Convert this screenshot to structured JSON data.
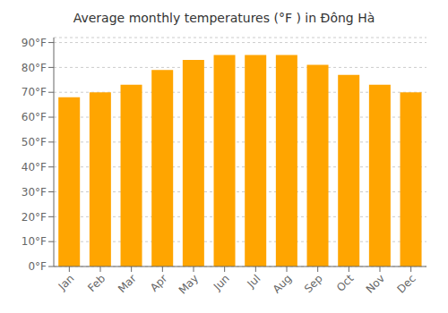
{
  "chart_data": {
    "type": "bar",
    "title": "Average monthly temperatures (°F ) in Đông Hà",
    "categories": [
      "Jan",
      "Feb",
      "Mar",
      "Apr",
      "May",
      "Jun",
      "Jul",
      "Aug",
      "Sep",
      "Oct",
      "Nov",
      "Dec"
    ],
    "values": [
      68,
      70,
      73,
      79,
      83,
      85,
      85,
      85,
      81,
      77,
      73,
      70
    ],
    "color": "#FFA500",
    "ylim": [
      0,
      92
    ],
    "yticks": [
      {
        "value": 0,
        "label": "0°F"
      },
      {
        "value": 10,
        "label": "10°F"
      },
      {
        "value": 20,
        "label": "20°F"
      },
      {
        "value": 30,
        "label": "30°F"
      },
      {
        "value": 40,
        "label": "40°F"
      },
      {
        "value": 50,
        "label": "50°F"
      },
      {
        "value": 60,
        "label": "60°F"
      },
      {
        "value": 70,
        "label": "70°F"
      },
      {
        "value": 80,
        "label": "80°F"
      },
      {
        "value": 90,
        "label": "90°F"
      }
    ],
    "grid": true
  }
}
